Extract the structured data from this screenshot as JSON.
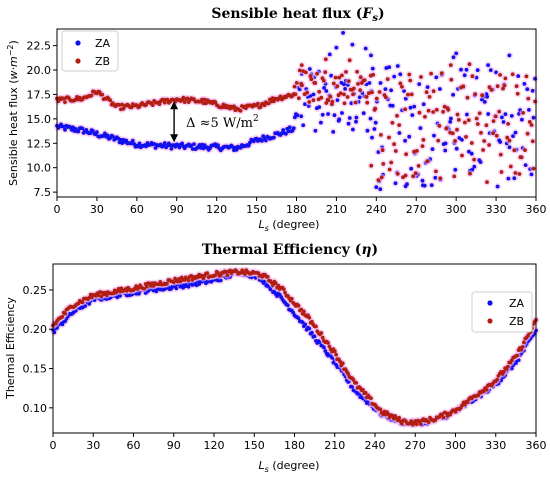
{
  "chart_data": [
    {
      "type": "scatter",
      "title_main": "Sensible heat flux (",
      "title_sym": "F",
      "title_sub": "s",
      "title_end": ")",
      "xlabel_main": "L",
      "xlabel_sub": "s",
      "xlabel_unit": " (degree)",
      "ylabel": "Sensible heat flux (",
      "ylabel_unit": "w·m",
      "ylabel_exp": "−2",
      "ylabel_end": ")",
      "xlim": [
        0,
        360
      ],
      "ylim": [
        7.0,
        24.2
      ],
      "xticks": [
        0,
        30,
        60,
        90,
        120,
        150,
        180,
        210,
        240,
        270,
        300,
        330,
        360
      ],
      "yticks": [
        "7.5",
        "10.0",
        "12.5",
        "15.0",
        "17.5",
        "20.0",
        "22.5"
      ],
      "legend_position": "top-left",
      "annotation": {
        "text": "Δ ≈5 W/m",
        "sup": "2",
        "x": 88,
        "y_from": 12.6,
        "y_to": 16.8
      },
      "series": [
        {
          "name": "ZA",
          "color": "#1010ee",
          "segments": [
            {
              "type": "curve",
              "x": [
                0,
                20,
                45,
                60,
                90,
                120,
                135,
                150,
                170,
                178
              ],
              "y": [
                14.2,
                13.8,
                12.9,
                12.4,
                12.2,
                12.1,
                12.0,
                12.8,
                13.6,
                14.0
              ],
              "noise": 0.3
            },
            {
              "type": "band",
              "x_range": [
                178,
                236
              ],
              "y_range": [
                13.5,
                20.0
              ],
              "extra": [
                [
                  184,
                  19.6
                ],
                [
                  190,
                  20.1
                ],
                [
                  205,
                  21.6
                ],
                [
                  210,
                  22.3
                ],
                [
                  215,
                  23.8
                ],
                [
                  222,
                  22.6
                ],
                [
                  232,
                  22.2
                ],
                [
                  236,
                  21.5
                ]
              ]
            },
            {
              "type": "band",
              "x_range": [
                236,
                360
              ],
              "y_range": [
                8.0,
                20.5
              ],
              "extra": [
                [
                  240,
                  8.0
                ],
                [
                  243,
                  7.8
                ],
                [
                  262,
                  8.1
                ],
                [
                  275,
                  8.2
                ],
                [
                  298,
                  21.3
                ],
                [
                  300,
                  21.7
                ],
                [
                  324,
                  20.5
                ],
                [
                  340,
                  21.5
                ]
              ]
            }
          ]
        },
        {
          "name": "ZB",
          "color": "#b21e12",
          "segments": [
            {
              "type": "curve",
              "x": [
                0,
                20,
                30,
                45,
                60,
                90,
                110,
                135,
                150,
                165,
                178
              ],
              "y": [
                16.9,
                17.1,
                17.8,
                16.2,
                16.3,
                17.0,
                16.8,
                16.0,
                16.3,
                17.1,
                17.5
              ],
              "noise": 0.25
            },
            {
              "type": "band",
              "x_range": [
                178,
                236
              ],
              "y_range": [
                16.5,
                20.2
              ],
              "extra": [
                [
                  184,
                  20.5
                ],
                [
                  202,
                  21.1
                ],
                [
                  220,
                  21.0
                ]
              ]
            },
            {
              "type": "band",
              "x_range": [
                236,
                360
              ],
              "y_range": [
                8.5,
                20.0
              ],
              "extra": [
                [
                  244,
                  9.0
                ],
                [
                  262,
                  9.2
                ],
                [
                  296,
                  20.5
                ],
                [
                  310,
                  20.6
                ],
                [
                  333,
                  19.5
                ]
              ]
            }
          ]
        }
      ]
    },
    {
      "type": "scatter",
      "title_main": "Thermal Efficiency (",
      "title_sym": "η",
      "title_end": ")",
      "xlabel_main": "L",
      "xlabel_sub": "s",
      "xlabel_unit": " (degree)",
      "ylabel": "Thermal Efficiency",
      "xlim": [
        0,
        360
      ],
      "ylim": [
        0.068,
        0.283
      ],
      "xticks": [
        0,
        30,
        60,
        90,
        120,
        150,
        180,
        210,
        240,
        270,
        300,
        330,
        360
      ],
      "yticks": [
        "0.10",
        "0.15",
        "0.20",
        "0.25"
      ],
      "legend_position": "top-right",
      "series": [
        {
          "name": "ZA",
          "color": "#1010ee",
          "segments": [
            {
              "type": "curve",
              "x": [
                0,
                15,
                30,
                60,
                90,
                120,
                140,
                155,
                170,
                190,
                210,
                225,
                245,
                260,
                270,
                285,
                300,
                330,
                345,
                360
              ],
              "y": [
                0.197,
                0.222,
                0.238,
                0.247,
                0.254,
                0.262,
                0.273,
                0.265,
                0.24,
                0.2,
                0.158,
                0.122,
                0.092,
                0.082,
                0.08,
                0.084,
                0.095,
                0.13,
                0.158,
                0.198
              ],
              "noise": 0.003
            }
          ]
        },
        {
          "name": "ZB",
          "color": "#b21e12",
          "segments": [
            {
              "type": "curve",
              "x": [
                0,
                15,
                30,
                60,
                90,
                120,
                140,
                155,
                170,
                190,
                210,
                225,
                245,
                260,
                270,
                285,
                300,
                330,
                345,
                360
              ],
              "y": [
                0.205,
                0.231,
                0.243,
                0.252,
                0.262,
                0.27,
                0.273,
                0.27,
                0.252,
                0.215,
                0.17,
                0.131,
                0.095,
                0.083,
                0.081,
                0.086,
                0.097,
                0.135,
                0.165,
                0.21
              ],
              "noise": 0.003
            }
          ]
        }
      ]
    }
  ]
}
